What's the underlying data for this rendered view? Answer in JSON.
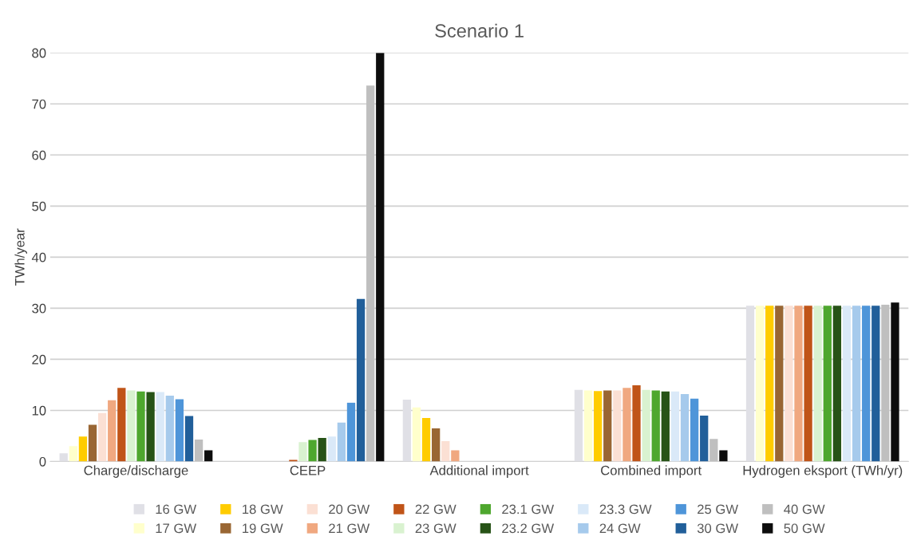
{
  "chart_data": {
    "type": "bar",
    "title": "Scenario 1",
    "ylabel": "TWh/year",
    "categories": [
      "Charge/discharge",
      "CEEP",
      "Additional import",
      "Combined import",
      "Hydrogen eksport (TWh/yr)"
    ],
    "ylim": [
      0,
      80
    ],
    "yticks": [
      0,
      10,
      20,
      30,
      40,
      50,
      60,
      70,
      80
    ],
    "grid": "y",
    "legend": "bottom",
    "series": [
      {
        "name": "16 GW",
        "color": "#e0e0e6",
        "values": [
          1.6,
          0,
          12.1,
          14.0,
          30.5
        ]
      },
      {
        "name": "17 GW",
        "color": "#ffffcc",
        "values": [
          3.0,
          0,
          10.6,
          13.9,
          30.5
        ]
      },
      {
        "name": "18 GW",
        "color": "#ffcc00",
        "values": [
          4.9,
          0,
          8.5,
          13.8,
          30.5
        ]
      },
      {
        "name": "19 GW",
        "color": "#996633",
        "values": [
          7.2,
          0,
          6.5,
          13.9,
          30.5
        ]
      },
      {
        "name": "20 GW",
        "color": "#fbe0d4",
        "values": [
          9.5,
          0,
          4.0,
          13.9,
          30.5
        ]
      },
      {
        "name": "21 GW",
        "color": "#f0a880",
        "values": [
          12.0,
          0,
          2.2,
          14.4,
          30.5
        ]
      },
      {
        "name": "22 GW",
        "color": "#c05418",
        "values": [
          14.4,
          0.3,
          0,
          14.9,
          30.5
        ]
      },
      {
        "name": "23 GW",
        "color": "#d9f2d0",
        "values": [
          13.9,
          3.8,
          0,
          14.0,
          30.5
        ]
      },
      {
        "name": "23.1 GW",
        "color": "#4ea72e",
        "values": [
          13.7,
          4.2,
          0,
          13.9,
          30.5
        ]
      },
      {
        "name": "23.2 GW",
        "color": "#275317",
        "values": [
          13.6,
          4.6,
          0,
          13.7,
          30.5
        ]
      },
      {
        "name": "23.3 GW",
        "color": "#dae9f8",
        "values": [
          13.6,
          4.9,
          0,
          13.7,
          30.5
        ]
      },
      {
        "name": "24 GW",
        "color": "#a6caec",
        "values": [
          12.9,
          7.6,
          0,
          13.2,
          30.5
        ]
      },
      {
        "name": "25 GW",
        "color": "#4e95d9",
        "values": [
          12.2,
          11.5,
          0,
          12.3,
          30.5
        ]
      },
      {
        "name": "30 GW",
        "color": "#215f9a",
        "values": [
          8.9,
          31.8,
          0,
          9.0,
          30.5
        ]
      },
      {
        "name": "40 GW",
        "color": "#bfbfbf",
        "values": [
          4.3,
          73.6,
          0,
          4.4,
          30.7
        ]
      },
      {
        "name": "50 GW",
        "color": "#0d0d0d",
        "values": [
          2.2,
          80,
          0,
          2.2,
          31.1
        ]
      }
    ]
  }
}
